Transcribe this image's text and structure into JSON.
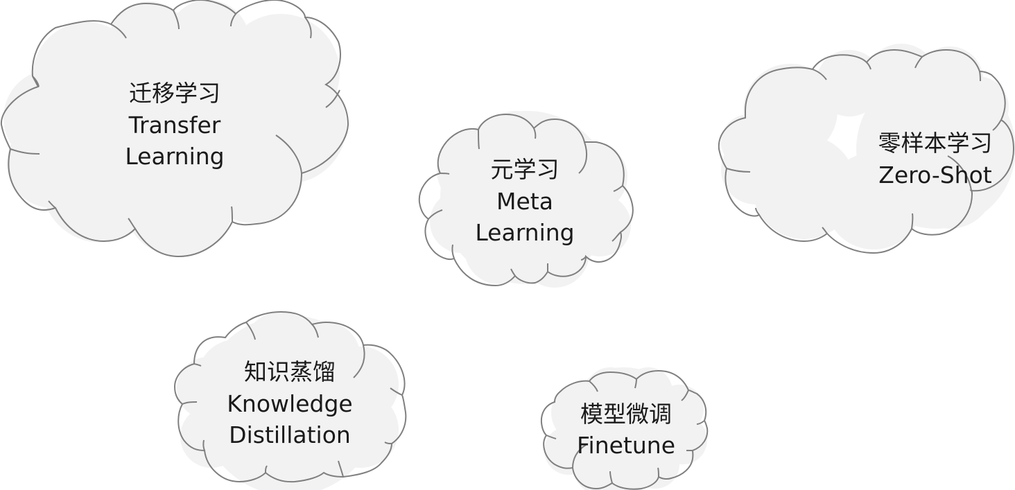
{
  "clouds": [
    {
      "id": "transfer-learning",
      "zh": "迁移学习",
      "en": [
        "Transfer",
        "Learning"
      ]
    },
    {
      "id": "meta-learning",
      "zh": "元学习",
      "en": [
        "Meta",
        "Learning"
      ]
    },
    {
      "id": "zero-shot",
      "zh": "零样本学习",
      "en": [
        "Zero-Shot"
      ]
    },
    {
      "id": "knowledge-distillation",
      "zh": "知识蒸馏",
      "en": [
        "Knowledge",
        "Distillation"
      ]
    },
    {
      "id": "finetune",
      "zh": "模型微调",
      "en": [
        "Finetune"
      ]
    }
  ],
  "colors": {
    "fill": "#f2f2f2",
    "stroke": "#7f7f7f",
    "text": "#1a1a1a"
  }
}
